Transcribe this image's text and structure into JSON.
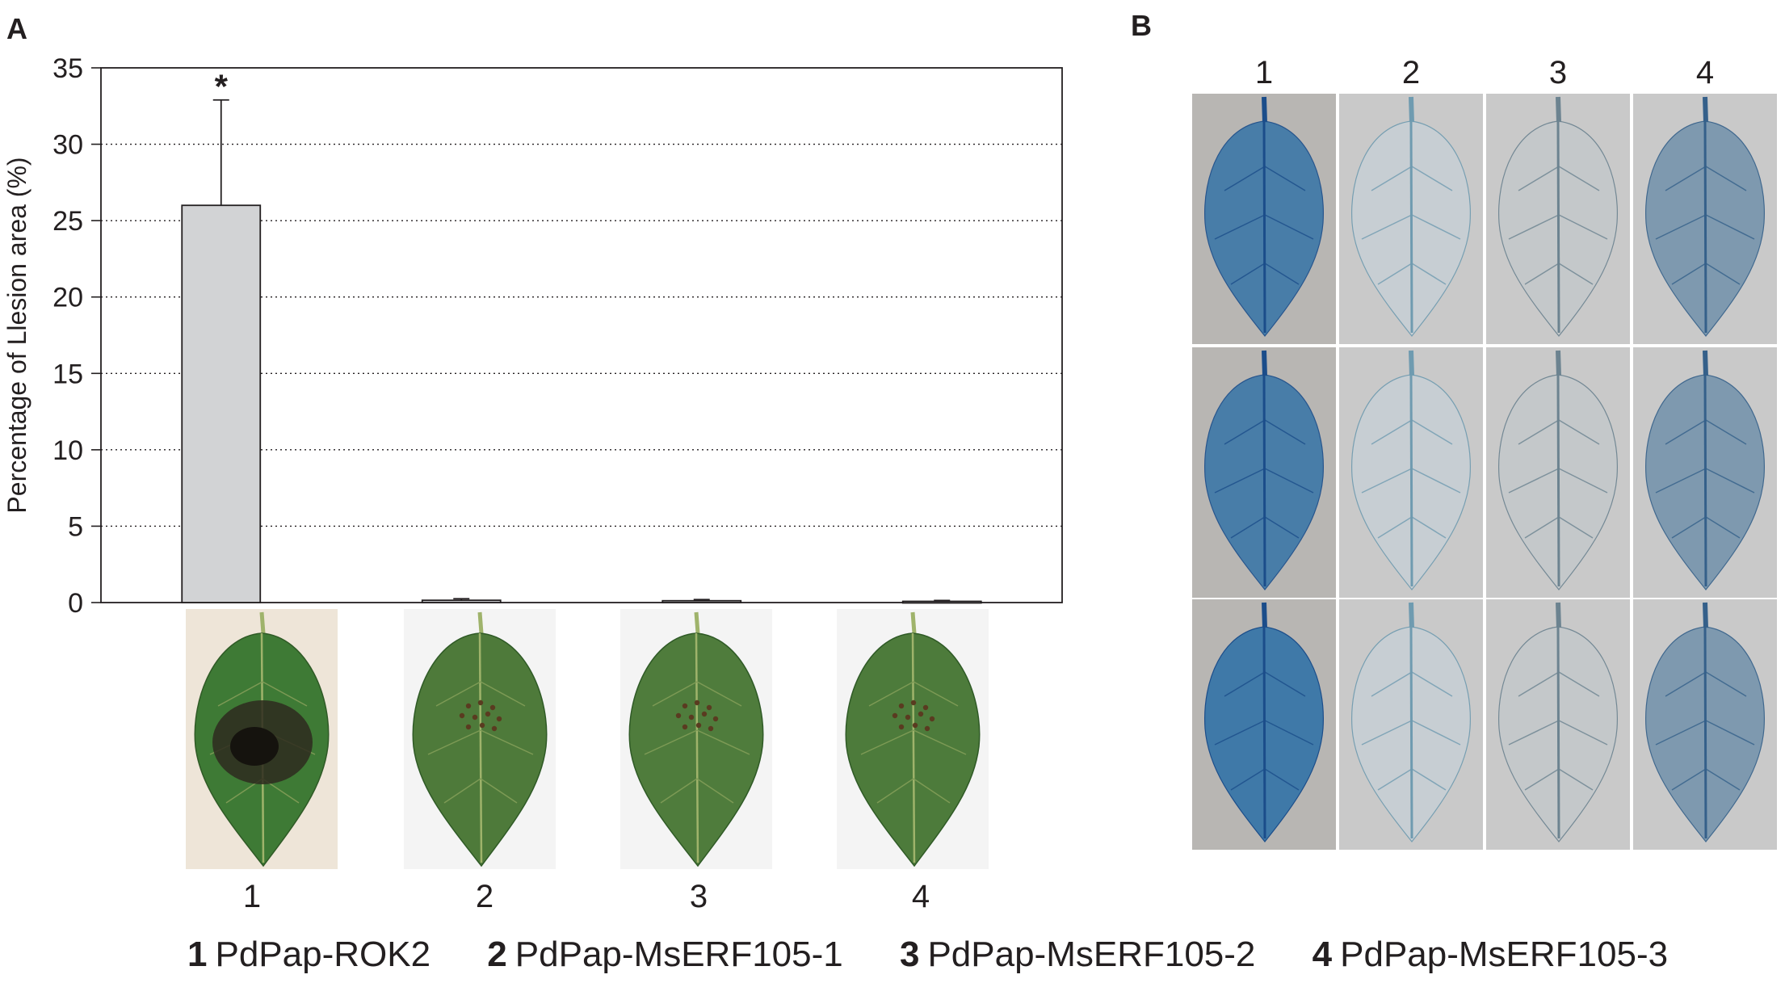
{
  "panel_a": {
    "letter": "A",
    "chart_data": {
      "type": "bar",
      "categories": [
        "1",
        "2",
        "3",
        "4"
      ],
      "values": [
        26.0,
        0.15,
        0.12,
        0.08
      ],
      "error_upper": [
        6.9,
        0.1,
        0.08,
        0.06
      ],
      "significance": [
        "*",
        "",
        "",
        ""
      ],
      "ylabel": "Percentage of Llesion area (%)",
      "xlabel": "",
      "ylim": [
        0,
        35
      ],
      "yticks": [
        "0",
        "5",
        "10",
        "15",
        "20",
        "25",
        "30",
        "35"
      ],
      "grid": "horizontal dotted",
      "bar_color": "#d2d3d5"
    },
    "leaf_photos": [
      {
        "label": "1",
        "icon": "leaf-necrotic-lesion-photo",
        "background": "#eee5d8",
        "leaf_color": "#3e7a35"
      },
      {
        "label": "2",
        "icon": "leaf-small-spots-photo",
        "background": "#f4f4f4",
        "leaf_color": "#4e7a3a"
      },
      {
        "label": "3",
        "icon": "leaf-small-spots-photo",
        "background": "#f4f4f4",
        "leaf_color": "#4f7c3c"
      },
      {
        "label": "4",
        "icon": "leaf-small-spots-photo",
        "background": "#f4f4f4",
        "leaf_color": "#4d7b3b"
      }
    ]
  },
  "panel_b": {
    "letter": "B",
    "column_labels": [
      "1",
      "2",
      "3",
      "4"
    ],
    "stain_colors": [
      "#3f79a8",
      "#c7cfd4",
      "#c4c8cb",
      "#7896ad"
    ],
    "stain_vein_colors": [
      "#1b4d8a",
      "#6f9bb0",
      "#6c8390",
      "#35608a"
    ],
    "row_background": "#b9b9b9"
  },
  "legend": [
    {
      "num": "1",
      "name": "PdPap-ROK2"
    },
    {
      "num": "2",
      "name": "PdPap-MsERF105-1"
    },
    {
      "num": "3",
      "name": "PdPap-MsERF105-2"
    },
    {
      "num": "4",
      "name": "PdPap-MsERF105-3"
    }
  ]
}
